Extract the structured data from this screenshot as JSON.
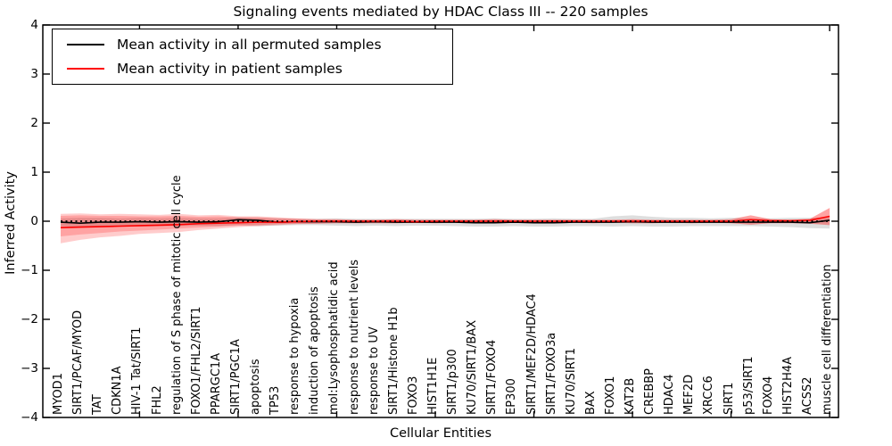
{
  "title": "Signaling events mediated by HDAC Class III -- 220 samples",
  "axes": {
    "ylabel": "Inferred Activity",
    "xlabel": "Cellular Entities",
    "yticks": [
      {
        "label": "4",
        "value": 4
      },
      {
        "label": "3",
        "value": 3
      },
      {
        "label": "2",
        "value": 2
      },
      {
        "label": "1",
        "value": 1
      },
      {
        "label": "0",
        "value": 0
      },
      {
        "label": "−1",
        "value": -1
      },
      {
        "label": "−2",
        "value": -2
      },
      {
        "label": "−3",
        "value": -3
      },
      {
        "label": "−4",
        "value": -4
      }
    ]
  },
  "legend": {
    "items": [
      {
        "label": "Mean activity in all permuted samples",
        "color": "#000000"
      },
      {
        "label": "Mean activity in patient samples",
        "color": "#ff0000"
      }
    ]
  },
  "chart_data": {
    "type": "line",
    "title": "Signaling events mediated by HDAC Class III -- 220 samples",
    "xlabel": "Cellular Entities",
    "ylabel": "Inferred Activity",
    "ylim": [
      -4,
      4
    ],
    "grid": false,
    "legend_position": "upper left",
    "zero_line": {
      "style": "dotted",
      "color": "#000000"
    },
    "top_tick_indices": [
      4,
      9,
      14,
      19,
      24,
      29,
      34,
      39
    ],
    "categories": [
      "MYOD1",
      "SIRT1/PCAF/MYOD",
      "TAT",
      "CDKN1A",
      "HIV-1 Tat/SIRT1",
      "FHL2",
      "regulation of S phase of mitotic cell cycle",
      "FOXO1/FHL2/SIRT1",
      "PPARGC1A",
      "SIRT1/PGC1A",
      "apoptosis",
      "TP53",
      "response to hypoxia",
      "induction of apoptosis",
      "mol:Lysophosphatidic acid",
      "response to nutrient levels",
      "response to UV",
      "SIRT1/Histone H1b",
      "FOXO3",
      "HIST1H1E",
      "SIRT1/p300",
      "KU70/SIRT1/BAX",
      "SIRT1/FOXO4",
      "EP300",
      "SIRT1/MEF2D/HDAC4",
      "SIRT1/FOXO3a",
      "KU70/SIRT1",
      "BAX",
      "FOXO1",
      "KAT2B",
      "CREBBP",
      "HDAC4",
      "MEF2D",
      "XRCC6",
      "SIRT1",
      "p53/SIRT1",
      "FOXO4",
      "HIST2H4A",
      "ACSS2",
      "muscle cell differentiation"
    ],
    "series": [
      {
        "name": "Mean activity in all permuted samples",
        "color": "#000000",
        "values": [
          -0.02,
          -0.04,
          -0.02,
          -0.02,
          -0.01,
          -0.02,
          -0.01,
          -0.02,
          -0.01,
          0.03,
          0.02,
          -0.02,
          -0.01,
          -0.01,
          -0.01,
          -0.02,
          -0.01,
          -0.02,
          -0.02,
          -0.02,
          -0.02,
          -0.03,
          -0.03,
          -0.02,
          -0.03,
          -0.03,
          -0.02,
          -0.02,
          -0.02,
          -0.01,
          -0.02,
          -0.02,
          -0.02,
          -0.02,
          -0.02,
          -0.02,
          -0.02,
          -0.02,
          -0.03,
          0.02
        ]
      },
      {
        "name": "Mean activity in patient samples",
        "color": "#ff0000",
        "values": [
          -0.13,
          -0.12,
          -0.11,
          -0.1,
          -0.09,
          -0.08,
          -0.07,
          -0.05,
          -0.04,
          -0.03,
          -0.02,
          -0.02,
          -0.01,
          0,
          0,
          0,
          0,
          0,
          -0.01,
          0,
          0,
          0,
          0,
          0,
          0,
          0,
          0,
          0,
          0,
          0,
          0,
          0,
          0,
          0,
          0,
          0.03,
          0.01,
          0.01,
          0.02,
          0.1
        ]
      }
    ],
    "bands": [
      {
        "name": "permuted-stddev-band",
        "color": "#888888",
        "opacity": 0.28,
        "upper": [
          0.06,
          0.07,
          0.07,
          0.06,
          0.07,
          0.06,
          0.07,
          0.06,
          0.06,
          0.08,
          0.07,
          0.06,
          0.05,
          0.05,
          0.06,
          0.05,
          0.05,
          0.05,
          0.05,
          0.05,
          0.05,
          0.05,
          0.06,
          0.05,
          0.05,
          0.06,
          0.05,
          0.05,
          0.1,
          0.12,
          0.09,
          0.07,
          0.07,
          0.06,
          0.07,
          0.06,
          0.06,
          0.07,
          0.07,
          0.08
        ],
        "lower": [
          -0.1,
          -0.12,
          -0.1,
          -0.1,
          -0.11,
          -0.1,
          -0.1,
          -0.09,
          -0.1,
          -0.08,
          -0.1,
          -0.09,
          -0.08,
          -0.08,
          -0.09,
          -0.1,
          -0.09,
          -0.1,
          -0.09,
          -0.09,
          -0.1,
          -0.11,
          -0.11,
          -0.1,
          -0.11,
          -0.11,
          -0.1,
          -0.1,
          -0.11,
          -0.1,
          -0.11,
          -0.11,
          -0.1,
          -0.1,
          -0.1,
          -0.1,
          -0.11,
          -0.12,
          -0.14,
          -0.15
        ]
      },
      {
        "name": "patient-stddev-band-outer",
        "color": "#ff0000",
        "opacity": 0.2,
        "upper": [
          0.15,
          0.16,
          0.14,
          0.15,
          0.14,
          0.13,
          0.15,
          0.12,
          0.13,
          0.1,
          0.1,
          0.08,
          0.06,
          0.04,
          0.04,
          0.03,
          0.03,
          0.04,
          0.03,
          0.03,
          0.03,
          0.03,
          0.04,
          0.03,
          0.03,
          0.03,
          0.03,
          0.03,
          0.03,
          0.04,
          0.03,
          0.03,
          0.03,
          0.03,
          0.04,
          0.12,
          0.04,
          0.03,
          0.05,
          0.27
        ],
        "lower": [
          -0.45,
          -0.38,
          -0.33,
          -0.3,
          -0.26,
          -0.24,
          -0.22,
          -0.18,
          -0.15,
          -0.12,
          -0.1,
          -0.08,
          -0.06,
          -0.05,
          -0.04,
          -0.04,
          -0.04,
          -0.04,
          -0.03,
          -0.04,
          -0.03,
          -0.04,
          -0.04,
          -0.03,
          -0.04,
          -0.04,
          -0.03,
          -0.04,
          -0.03,
          -0.04,
          -0.04,
          -0.03,
          -0.04,
          -0.03,
          -0.04,
          -0.07,
          -0.04,
          -0.04,
          -0.05,
          -0.08
        ]
      },
      {
        "name": "patient-stddev-band-inner",
        "color": "#ff0000",
        "opacity": 0.2,
        "upper": [
          0.11,
          0.12,
          0.11,
          0.11,
          0.1,
          0.1,
          0.11,
          0.09,
          0.1,
          0.08,
          0.08,
          0.06,
          0.05,
          0.04,
          0.04,
          0.03,
          0.03,
          0.04,
          0.03,
          0.03,
          0.03,
          0.03,
          0.04,
          0.03,
          0.03,
          0.03,
          0.03,
          0.03,
          0.03,
          0.04,
          0.03,
          0.03,
          0.03,
          0.03,
          0.04,
          0.12,
          0.04,
          0.03,
          0.05,
          0.27
        ],
        "lower": [
          -0.31,
          -0.27,
          -0.24,
          -0.21,
          -0.19,
          -0.17,
          -0.15,
          -0.13,
          -0.11,
          -0.09,
          -0.08,
          -0.06,
          -0.05,
          -0.05,
          -0.04,
          -0.04,
          -0.04,
          -0.04,
          -0.03,
          -0.04,
          -0.03,
          -0.04,
          -0.04,
          -0.03,
          -0.04,
          -0.04,
          -0.03,
          -0.04,
          -0.03,
          -0.04,
          -0.04,
          -0.03,
          -0.04,
          -0.03,
          -0.04,
          -0.07,
          -0.04,
          -0.04,
          -0.05,
          -0.08
        ]
      }
    ]
  }
}
